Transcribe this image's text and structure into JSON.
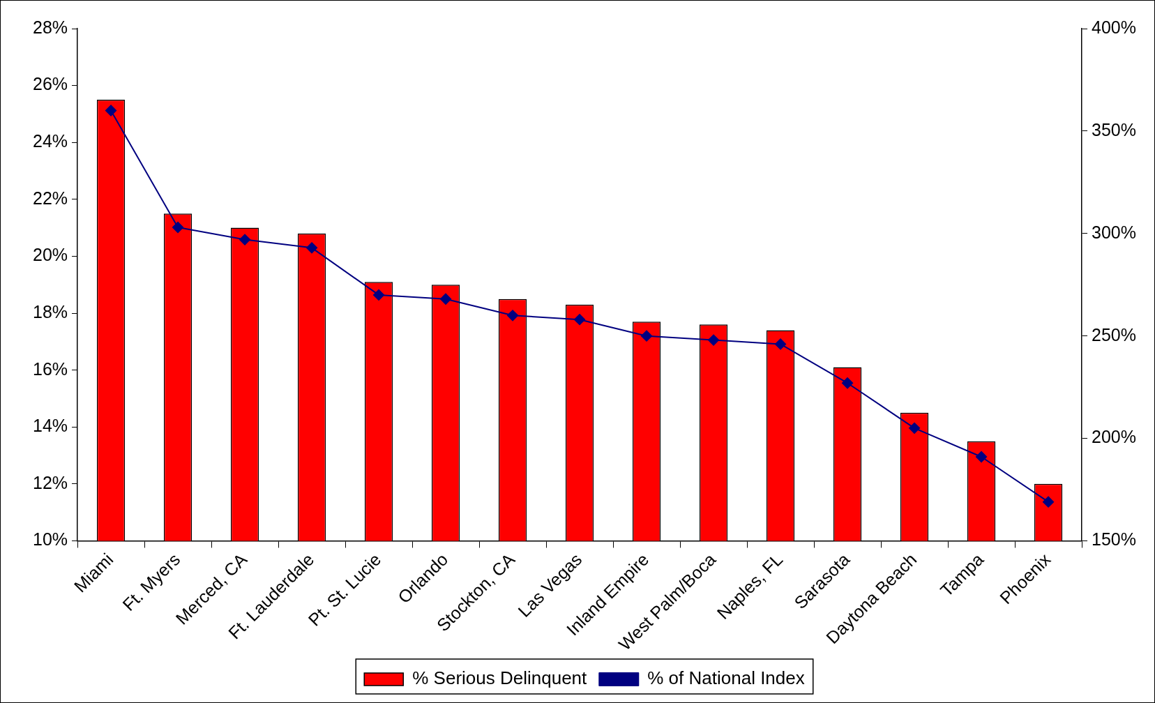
{
  "chart_data": {
    "type": "bar",
    "categories": [
      "Miami",
      "Ft. Myers",
      "Merced, CA",
      "Ft. Lauderdale",
      "Pt. St. Lucie",
      "Orlando",
      "Stockton, CA",
      "Las Vegas",
      "Inland Empire",
      "West Palm/Boca",
      "Naples, FL",
      "Sarasota",
      "Daytona Beach",
      "Tampa",
      "Phoenix"
    ],
    "series": [
      {
        "name": "% Serious Delinquent",
        "color": "#ff0000",
        "values": [
          25.5,
          21.5,
          21.0,
          20.8,
          19.1,
          19.0,
          18.5,
          18.3,
          17.7,
          17.6,
          17.4,
          16.1,
          14.5,
          13.5,
          12.0
        ]
      },
      {
        "name": "% of National Index",
        "type": "line",
        "axis": "y2",
        "color": "#000080",
        "marker": "diamond",
        "values": [
          360,
          303,
          297,
          293,
          270,
          268,
          260,
          258,
          250,
          248,
          246,
          227,
          205,
          191,
          169
        ]
      }
    ],
    "ylim": [
      10,
      28
    ],
    "yticks": [
      {
        "value": 10,
        "label": "10%"
      },
      {
        "value": 12,
        "label": "12%"
      },
      {
        "value": 14,
        "label": "14%"
      },
      {
        "value": 16,
        "label": "16%"
      },
      {
        "value": 18,
        "label": "18%"
      },
      {
        "value": 20,
        "label": "20%"
      },
      {
        "value": 22,
        "label": "22%"
      },
      {
        "value": 24,
        "label": "24%"
      },
      {
        "value": 26,
        "label": "26%"
      },
      {
        "value": 28,
        "label": "28%"
      }
    ],
    "y2lim": [
      150,
      400
    ],
    "y2ticks": [
      {
        "value": 150,
        "label": "150%"
      },
      {
        "value": 200,
        "label": "200%"
      },
      {
        "value": 250,
        "label": "250%"
      },
      {
        "value": 300,
        "label": "300%"
      },
      {
        "value": 350,
        "label": "350%"
      },
      {
        "value": 400,
        "label": "400%"
      }
    ],
    "grid": false,
    "legend": "bottom"
  }
}
